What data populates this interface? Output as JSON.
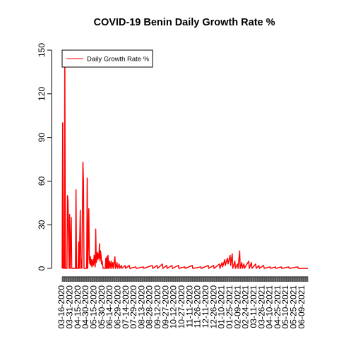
{
  "chart_data": {
    "type": "line",
    "title": "COVID-19 Benin Daily Growth Rate %",
    "xlabel": "",
    "ylabel": "",
    "ylim": [
      0,
      150
    ],
    "y_ticks": [
      0,
      30,
      60,
      90,
      120,
      150
    ],
    "x_tick_labels": [
      "03-16-2020",
      "03-31-2020",
      "04-15-2020",
      "04-30-2020",
      "05-15-2020",
      "05-30-2020",
      "06-14-2020",
      "06-29-2020",
      "07-14-2020",
      "07-29-2020",
      "08-13-2020",
      "08-28-2020",
      "09-12-2020",
      "09-27-2020",
      "10-12-2020",
      "10-27-2020",
      "11-11-2020",
      "11-26-2020",
      "12-11-2020",
      "12-26-2020",
      "01-10-2021",
      "01-25-2021",
      "02-09-2021",
      "02-24-2021",
      "03-11-2021",
      "03-26-2021",
      "04-10-2021",
      "04-25-2021",
      "05-10-2021",
      "05-25-2021",
      "06-09-2021"
    ],
    "legend": {
      "position": "top-left",
      "entries": [
        "Daily Growth Rate %"
      ]
    },
    "grid": false,
    "series": [
      {
        "name": "Daily Growth Rate %",
        "color": "#ff0000",
        "points": [
          [
            "03-16-2020",
            0
          ],
          [
            "03-17-2020",
            100
          ],
          [
            "03-18-2020",
            0
          ],
          [
            "03-20-2020",
            0
          ],
          [
            "03-21-2020",
            150
          ],
          [
            "03-22-2020",
            0
          ],
          [
            "03-25-2020",
            0
          ],
          [
            "03-26-2020",
            50
          ],
          [
            "03-27-2020",
            46
          ],
          [
            "03-28-2020",
            22
          ],
          [
            "03-29-2020",
            0
          ],
          [
            "03-30-2020",
            37
          ],
          [
            "03-31-2020",
            0
          ],
          [
            "04-02-2020",
            35
          ],
          [
            "04-03-2020",
            0
          ],
          [
            "04-10-2020",
            0
          ],
          [
            "04-11-2020",
            54
          ],
          [
            "04-12-2020",
            0
          ],
          [
            "04-15-2020",
            0
          ],
          [
            "04-16-2020",
            18
          ],
          [
            "04-17-2020",
            0
          ],
          [
            "04-19-2020",
            40
          ],
          [
            "04-20-2020",
            0
          ],
          [
            "04-21-2020",
            6
          ],
          [
            "04-22-2020",
            0
          ],
          [
            "04-24-2020",
            73
          ],
          [
            "04-25-2020",
            60
          ],
          [
            "04-26-2020",
            0
          ],
          [
            "05-01-2020",
            0
          ],
          [
            "05-02-2020",
            62
          ],
          [
            "05-03-2020",
            0
          ],
          [
            "05-05-2020",
            41
          ],
          [
            "05-06-2020",
            7
          ],
          [
            "05-07-2020",
            3
          ],
          [
            "05-08-2020",
            8
          ],
          [
            "05-09-2020",
            2
          ],
          [
            "05-10-2020",
            6
          ],
          [
            "05-11-2020",
            1
          ],
          [
            "05-12-2020",
            4
          ],
          [
            "05-13-2020",
            6
          ],
          [
            "05-14-2020",
            2
          ],
          [
            "05-15-2020",
            9
          ],
          [
            "05-16-2020",
            5
          ],
          [
            "05-17-2020",
            1
          ],
          [
            "05-18-2020",
            27
          ],
          [
            "05-19-2020",
            4
          ],
          [
            "05-20-2020",
            8
          ],
          [
            "05-21-2020",
            11
          ],
          [
            "05-22-2020",
            6
          ],
          [
            "05-23-2020",
            10
          ],
          [
            "05-24-2020",
            7
          ],
          [
            "05-25-2020",
            17
          ],
          [
            "05-26-2020",
            5
          ],
          [
            "05-27-2020",
            12
          ],
          [
            "05-28-2020",
            9
          ],
          [
            "05-29-2020",
            3
          ],
          [
            "05-30-2020",
            5
          ],
          [
            "05-31-2020",
            2
          ],
          [
            "06-01-2020",
            0
          ],
          [
            "06-05-2020",
            0
          ],
          [
            "06-06-2020",
            7
          ],
          [
            "06-07-2020",
            0
          ],
          [
            "06-08-2020",
            8
          ],
          [
            "06-09-2020",
            0
          ],
          [
            "06-10-2020",
            9
          ],
          [
            "06-11-2020",
            0
          ],
          [
            "06-13-2020",
            5
          ],
          [
            "06-14-2020",
            0
          ],
          [
            "06-16-2020",
            5
          ],
          [
            "06-17-2020",
            0
          ],
          [
            "06-19-2020",
            4
          ],
          [
            "06-20-2020",
            0
          ],
          [
            "06-23-2020",
            8
          ],
          [
            "06-24-2020",
            0
          ],
          [
            "06-27-2020",
            4
          ],
          [
            "06-28-2020",
            0
          ],
          [
            "07-01-2020",
            3
          ],
          [
            "07-02-2020",
            0
          ],
          [
            "07-05-2020",
            2
          ],
          [
            "07-06-2020",
            0
          ],
          [
            "07-12-2020",
            2
          ],
          [
            "07-13-2020",
            0
          ],
          [
            "07-20-2020",
            2
          ],
          [
            "07-21-2020",
            0
          ],
          [
            "08-01-2020",
            1
          ],
          [
            "08-02-2020",
            0
          ],
          [
            "08-15-2020",
            1
          ],
          [
            "08-16-2020",
            0
          ],
          [
            "09-01-2020",
            2
          ],
          [
            "09-02-2020",
            0
          ],
          [
            "09-10-2020",
            2
          ],
          [
            "09-11-2020",
            0
          ],
          [
            "09-20-2020",
            3
          ],
          [
            "09-21-2020",
            0
          ],
          [
            "09-28-2020",
            2
          ],
          [
            "09-29-2020",
            0
          ],
          [
            "10-08-2020",
            2
          ],
          [
            "10-09-2020",
            0
          ],
          [
            "10-20-2020",
            2
          ],
          [
            "10-21-2020",
            0
          ],
          [
            "11-01-2020",
            1
          ],
          [
            "11-02-2020",
            0
          ],
          [
            "11-15-2020",
            2
          ],
          [
            "11-16-2020",
            0
          ],
          [
            "12-01-2020",
            1
          ],
          [
            "12-02-2020",
            0
          ],
          [
            "12-15-2020",
            2
          ],
          [
            "12-16-2020",
            0
          ],
          [
            "12-25-2020",
            2
          ],
          [
            "12-26-2020",
            0
          ],
          [
            "01-05-2021",
            3
          ],
          [
            "01-06-2021",
            0
          ],
          [
            "01-10-2021",
            4
          ],
          [
            "01-11-2021",
            1
          ],
          [
            "01-15-2021",
            6
          ],
          [
            "01-16-2021",
            2
          ],
          [
            "01-20-2021",
            7
          ],
          [
            "01-21-2021",
            3
          ],
          [
            "01-25-2021",
            9
          ],
          [
            "01-26-2021",
            2
          ],
          [
            "01-29-2021",
            10
          ],
          [
            "01-30-2021",
            0
          ],
          [
            "02-03-2021",
            5
          ],
          [
            "02-04-2021",
            0
          ],
          [
            "02-08-2021",
            3
          ],
          [
            "02-09-2021",
            0
          ],
          [
            "02-12-2021",
            12
          ],
          [
            "02-13-2021",
            0
          ],
          [
            "02-16-2021",
            4
          ],
          [
            "02-17-2021",
            0
          ],
          [
            "02-20-2021",
            3
          ],
          [
            "02-21-2021",
            0
          ],
          [
            "03-01-2021",
            5
          ],
          [
            "03-02-2021",
            0
          ],
          [
            "03-06-2021",
            4
          ],
          [
            "03-07-2021",
            0
          ],
          [
            "03-14-2021",
            3
          ],
          [
            "03-15-2021",
            0
          ],
          [
            "03-20-2021",
            2
          ],
          [
            "03-21-2021",
            0
          ],
          [
            "03-29-2021",
            2
          ],
          [
            "03-30-2021",
            0
          ],
          [
            "04-10-2021",
            1
          ],
          [
            "04-11-2021",
            0
          ],
          [
            "04-20-2021",
            1
          ],
          [
            "04-21-2021",
            0
          ],
          [
            "05-01-2021",
            1
          ],
          [
            "05-02-2021",
            0
          ],
          [
            "05-15-2021",
            1
          ],
          [
            "05-16-2021",
            0
          ],
          [
            "06-01-2021",
            1
          ],
          [
            "06-02-2021",
            0
          ],
          [
            "06-20-2021",
            0
          ]
        ]
      }
    ]
  }
}
